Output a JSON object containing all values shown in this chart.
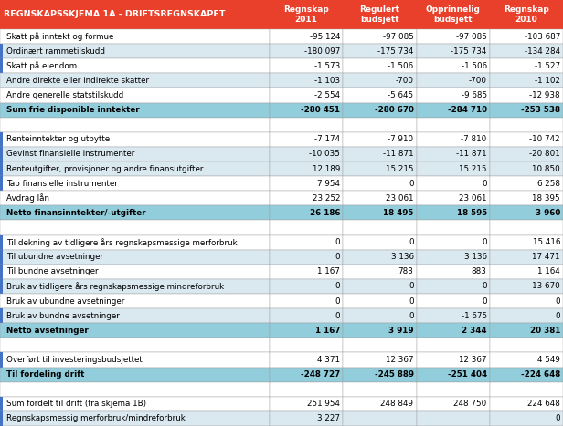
{
  "title": "REGNSKAPSSKJEMA 1A - DRIFTSREGNSKAPET",
  "columns": [
    "Regnskap\n2011",
    "Regulert\nbudsjett",
    "Opprinnelig\nbudsjett",
    "Regnskap\n2010"
  ],
  "rows": [
    {
      "label": "Skatt på inntekt og formue",
      "values": [
        "-95 124",
        "-97 085",
        "-97 085",
        "-103 687"
      ],
      "bold": false,
      "bg": "white",
      "marker": false
    },
    {
      "label": "Ordinært rammetilskudd",
      "values": [
        "-180 097",
        "-175 734",
        "-175 734",
        "-134 284"
      ],
      "bold": false,
      "bg": "light",
      "marker": true
    },
    {
      "label": "Skatt på eiendom",
      "values": [
        "-1 573",
        "-1 506",
        "-1 506",
        "-1 527"
      ],
      "bold": false,
      "bg": "white",
      "marker": true
    },
    {
      "label": "Andre direkte eller indirekte skatter",
      "values": [
        "-1 103",
        "-700",
        "-700",
        "-1 102"
      ],
      "bold": false,
      "bg": "light",
      "marker": false
    },
    {
      "label": "Andre generelle statstilskudd",
      "values": [
        "-2 554",
        "-5 645",
        "-9 685",
        "-12 938"
      ],
      "bold": false,
      "bg": "white",
      "marker": false
    },
    {
      "label": "Sum frie disponible inntekter",
      "values": [
        "-280 451",
        "-280 670",
        "-284 710",
        "-253 538"
      ],
      "bold": true,
      "bg": "blue",
      "marker": false
    },
    {
      "label": "",
      "values": [
        "",
        "",
        "",
        ""
      ],
      "bold": false,
      "bg": "white",
      "marker": false
    },
    {
      "label": "Renteinntekter og utbytte",
      "values": [
        "-7 174",
        "-7 910",
        "-7 810",
        "-10 742"
      ],
      "bold": false,
      "bg": "white",
      "marker": true
    },
    {
      "label": "Gevinst finansielle instrumenter",
      "values": [
        "-10 035",
        "-11 871",
        "-11 871",
        "-20 801"
      ],
      "bold": false,
      "bg": "light",
      "marker": true
    },
    {
      "label": "Renteutgifter, provisjoner og andre finansutgifter",
      "values": [
        "12 189",
        "15 215",
        "15 215",
        "10 850"
      ],
      "bold": false,
      "bg": "light",
      "marker": true
    },
    {
      "label": "Tap finansielle instrumenter",
      "values": [
        "7 954",
        "0",
        "0",
        "6 258"
      ],
      "bold": false,
      "bg": "white",
      "marker": true
    },
    {
      "label": "Avdrag lån",
      "values": [
        "23 252",
        "23 061",
        "23 061",
        "18 395"
      ],
      "bold": false,
      "bg": "white",
      "marker": false
    },
    {
      "label": "Netto finansinntekter/-utgifter",
      "values": [
        "26 186",
        "18 495",
        "18 595",
        "3 960"
      ],
      "bold": true,
      "bg": "blue",
      "marker": false
    },
    {
      "label": "",
      "values": [
        "",
        "",
        "",
        ""
      ],
      "bold": false,
      "bg": "white",
      "marker": false
    },
    {
      "label": "Til dekning av tidligere års regnskapsmessige merforbruk",
      "values": [
        "0",
        "0",
        "0",
        "15 416"
      ],
      "bold": false,
      "bg": "white",
      "marker": true
    },
    {
      "label": "Til ubundne avsetninger",
      "values": [
        "0",
        "3 136",
        "3 136",
        "17 471"
      ],
      "bold": false,
      "bg": "light",
      "marker": true
    },
    {
      "label": "Til bundne avsetninger",
      "values": [
        "1 167",
        "783",
        "883",
        "1 164"
      ],
      "bold": false,
      "bg": "white",
      "marker": true
    },
    {
      "label": "Bruk av tidligere års regnskapsmessige mindreforbruk",
      "values": [
        "0",
        "0",
        "0",
        "-13 670"
      ],
      "bold": false,
      "bg": "light",
      "marker": true
    },
    {
      "label": "Bruk av ubundne avsetninger",
      "values": [
        "0",
        "0",
        "0",
        "0"
      ],
      "bold": false,
      "bg": "white",
      "marker": false
    },
    {
      "label": "Bruk av bundne avsetninger",
      "values": [
        "0",
        "0",
        "-1 675",
        "0"
      ],
      "bold": false,
      "bg": "light",
      "marker": true
    },
    {
      "label": "Netto avsetninger",
      "values": [
        "1 167",
        "3 919",
        "2 344",
        "20 381"
      ],
      "bold": true,
      "bg": "blue",
      "marker": false
    },
    {
      "label": "",
      "values": [
        "",
        "",
        "",
        ""
      ],
      "bold": false,
      "bg": "white",
      "marker": false
    },
    {
      "label": "Overført til investeringsbudsjettet",
      "values": [
        "4 371",
        "12 367",
        "12 367",
        "4 549"
      ],
      "bold": false,
      "bg": "white",
      "marker": true
    },
    {
      "label": "Til fordeling drift",
      "values": [
        "-248 727",
        "-245 889",
        "-251 404",
        "-224 648"
      ],
      "bold": true,
      "bg": "blue",
      "marker": false
    },
    {
      "label": "",
      "values": [
        "",
        "",
        "",
        ""
      ],
      "bold": false,
      "bg": "white",
      "marker": false
    },
    {
      "label": "Sum fordelt til drift (fra skjema 1B)",
      "values": [
        "251 954",
        "248 849",
        "248 750",
        "224 648"
      ],
      "bold": false,
      "bg": "white",
      "marker": true
    },
    {
      "label": "Regnskapsmessig merforbruk/mindreforbruk",
      "values": [
        "3 227",
        "",
        "",
        "0"
      ],
      "bold": false,
      "bg": "light",
      "marker": true
    }
  ],
  "header_bg": "#E8402A",
  "header_text": "#FFFFFF",
  "blue_row_bg": "#92CDDC",
  "light_row_bg": "#DAE8F0",
  "white_row_bg": "#FFFFFF",
  "marker_color": "#4472C4",
  "border_color": "#A0A0A0",
  "col_header_bg": "#E8402A",
  "col_header_text": "#FFFFFF",
  "text_color_normal": "#000000",
  "text_color_bold": "#000000"
}
